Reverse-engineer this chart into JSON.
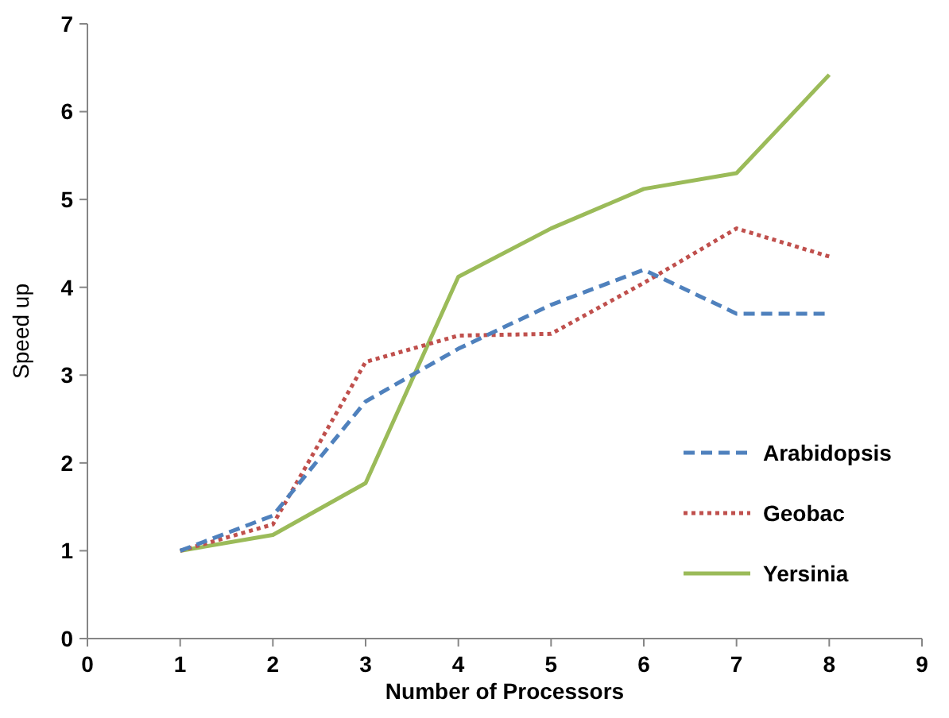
{
  "chart_data": {
    "type": "line",
    "xlabel": "Number of Processors",
    "ylabel": "Speed up",
    "x": [
      1,
      2,
      3,
      4,
      5,
      6,
      7,
      8
    ],
    "xlim": [
      0,
      9
    ],
    "xticks": [
      0,
      1,
      2,
      3,
      4,
      5,
      6,
      7,
      8,
      9
    ],
    "ylim": [
      0,
      7
    ],
    "yticks": [
      0,
      1,
      2,
      3,
      4,
      5,
      6,
      7
    ],
    "grid": false,
    "legend": "right",
    "marker": "none",
    "series": [
      {
        "name": "Arabidopsis",
        "color": "#4f81bd",
        "line_style": "dashed",
        "values": [
          1,
          1.4,
          2.7,
          3.3,
          3.8,
          4.2,
          3.7,
          3.7
        ]
      },
      {
        "name": "Geobac",
        "color": "#c0504d",
        "line_style": "dotted",
        "values": [
          1,
          1.3,
          3.15,
          3.45,
          3.47,
          4.05,
          4.67,
          4.35
        ]
      },
      {
        "name": "Yersinia",
        "color": "#9bbb59",
        "line_style": "solid",
        "values": [
          1,
          1.18,
          1.77,
          4.12,
          4.67,
          5.12,
          5.3,
          6.42
        ]
      }
    ]
  }
}
